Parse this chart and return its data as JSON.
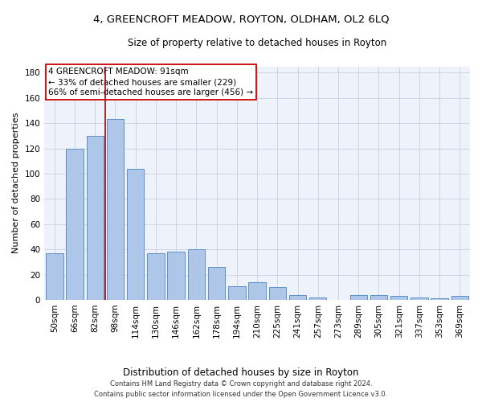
{
  "title1": "4, GREENCROFT MEADOW, ROYTON, OLDHAM, OL2 6LQ",
  "title2": "Size of property relative to detached houses in Royton",
  "xlabel": "Distribution of detached houses by size in Royton",
  "ylabel": "Number of detached properties",
  "categories": [
    "50sqm",
    "66sqm",
    "82sqm",
    "98sqm",
    "114sqm",
    "130sqm",
    "146sqm",
    "162sqm",
    "178sqm",
    "194sqm",
    "210sqm",
    "225sqm",
    "241sqm",
    "257sqm",
    "273sqm",
    "289sqm",
    "305sqm",
    "321sqm",
    "337sqm",
    "353sqm",
    "369sqm"
  ],
  "values": [
    37,
    120,
    130,
    143,
    104,
    37,
    38,
    40,
    26,
    11,
    14,
    10,
    4,
    2,
    0,
    4,
    4,
    3,
    2,
    1,
    3
  ],
  "bar_color": "#aec6e8",
  "bar_edge_color": "#5b8fc9",
  "grid_color": "#c8d0e0",
  "bg_color": "#eef2fa",
  "vline_color": "#aa0000",
  "annotation_text": "4 GREENCROFT MEADOW: 91sqm\n← 33% of detached houses are smaller (229)\n66% of semi-detached houses are larger (456) →",
  "annotation_box_color": "#ffffff",
  "annotation_box_edge": "#cc0000",
  "ylim": [
    0,
    185
  ],
  "yticks": [
    0,
    20,
    40,
    60,
    80,
    100,
    120,
    140,
    160,
    180
  ],
  "footer1": "Contains HM Land Registry data © Crown copyright and database right 2024.",
  "footer2": "Contains public sector information licensed under the Open Government Licence v3.0.",
  "title1_fontsize": 9.5,
  "title2_fontsize": 8.5,
  "xlabel_fontsize": 8.5,
  "ylabel_fontsize": 8,
  "tick_fontsize": 7.5,
  "annotation_fontsize": 7.5,
  "footer_fontsize": 6
}
